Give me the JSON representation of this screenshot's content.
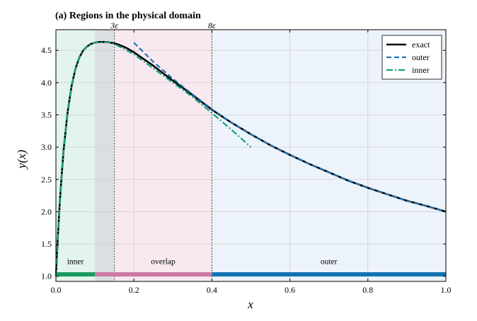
{
  "chart_data": {
    "type": "line",
    "title": "(a) Regions in the physical domain",
    "xlabel": "x",
    "ylabel": "y(x)",
    "xlim": [
      0.0,
      1.0
    ],
    "ylim": [
      0.92,
      4.82
    ],
    "x_ticks": [
      0.0,
      0.2,
      0.4,
      0.6,
      0.8,
      1.0
    ],
    "x_tick_labels": [
      "0.0",
      "0.2",
      "0.4",
      "0.6",
      "0.8",
      "1.0"
    ],
    "y_ticks": [
      1.0,
      1.5,
      2.0,
      2.5,
      3.0,
      3.5,
      4.0,
      4.5
    ],
    "y_tick_labels": [
      "1.0",
      "1.5",
      "2.0",
      "2.5",
      "3.0",
      "3.5",
      "4.0",
      "4.5"
    ],
    "grid": true,
    "legend_position": "top-right",
    "regions": [
      {
        "label": "inner",
        "x0": 0.0,
        "x1": 0.1,
        "fill": "#e3f4ec",
        "bar_color": "#1a9a62"
      },
      {
        "label": "",
        "x0": 0.1,
        "x1": 0.15,
        "fill": "#dcdfe1",
        "bar_color": "#cc79a7"
      },
      {
        "label": "overlap",
        "x0": 0.15,
        "x1": 0.4,
        "fill": "#f8e9f1",
        "bar_color": "#cc79a7"
      },
      {
        "label": "outer",
        "x0": 0.4,
        "x1": 1.0,
        "fill": "#edf3fa",
        "bar_color": "#1372b3"
      }
    ],
    "region_bar_y": 1.03,
    "region_label_y": 1.23,
    "markers": [
      {
        "x": 0.15,
        "label": "3ε"
      },
      {
        "x": 0.4,
        "label": "8ε"
      }
    ],
    "series": [
      {
        "name": "exact",
        "color": "#000000",
        "style": "solid",
        "x": [
          0.0,
          0.005,
          0.01,
          0.015,
          0.02,
          0.03,
          0.04,
          0.05,
          0.06,
          0.07,
          0.08,
          0.09,
          0.1,
          0.11,
          0.12,
          0.13,
          0.14,
          0.15,
          0.16,
          0.18,
          0.2,
          0.25,
          0.3,
          0.35,
          0.4,
          0.45,
          0.5,
          0.55,
          0.6,
          0.65,
          0.7,
          0.75,
          0.8,
          0.85,
          0.9,
          0.95,
          1.0
        ],
        "y": [
          1.0,
          1.62,
          2.15,
          2.59,
          2.97,
          3.54,
          3.94,
          4.21,
          4.39,
          4.5,
          4.56,
          4.6,
          4.62,
          4.63,
          4.63,
          4.63,
          4.62,
          4.61,
          4.59,
          4.54,
          4.47,
          4.26,
          4.03,
          3.81,
          3.58,
          3.38,
          3.2,
          3.03,
          2.88,
          2.74,
          2.61,
          2.48,
          2.37,
          2.27,
          2.17,
          2.09,
          2.0
        ]
      },
      {
        "name": "outer",
        "color": "#1f77b4",
        "style": "dashed",
        "x": [
          0.2,
          0.25,
          0.3,
          0.35,
          0.4,
          0.45,
          0.5,
          0.55,
          0.6,
          0.65,
          0.7,
          0.75,
          0.8,
          0.85,
          0.9,
          0.95,
          1.0
        ],
        "y": [
          4.62,
          4.32,
          4.06,
          3.82,
          3.59,
          3.38,
          3.2,
          3.03,
          2.88,
          2.74,
          2.61,
          2.48,
          2.37,
          2.27,
          2.17,
          2.09,
          2.0
        ]
      },
      {
        "name": "inner",
        "color": "#14a37a",
        "style": "dashdot",
        "x": [
          0.0,
          0.005,
          0.01,
          0.015,
          0.02,
          0.03,
          0.04,
          0.05,
          0.06,
          0.07,
          0.08,
          0.09,
          0.1,
          0.11,
          0.12,
          0.13,
          0.14,
          0.15,
          0.2,
          0.25,
          0.3,
          0.35,
          0.4,
          0.45,
          0.5
        ],
        "y": [
          1.0,
          1.62,
          2.15,
          2.59,
          2.97,
          3.54,
          3.94,
          4.21,
          4.39,
          4.5,
          4.56,
          4.6,
          4.62,
          4.63,
          4.63,
          4.63,
          4.62,
          4.6,
          4.44,
          4.22,
          4.0,
          3.78,
          3.53,
          3.27,
          3.0
        ]
      }
    ]
  }
}
